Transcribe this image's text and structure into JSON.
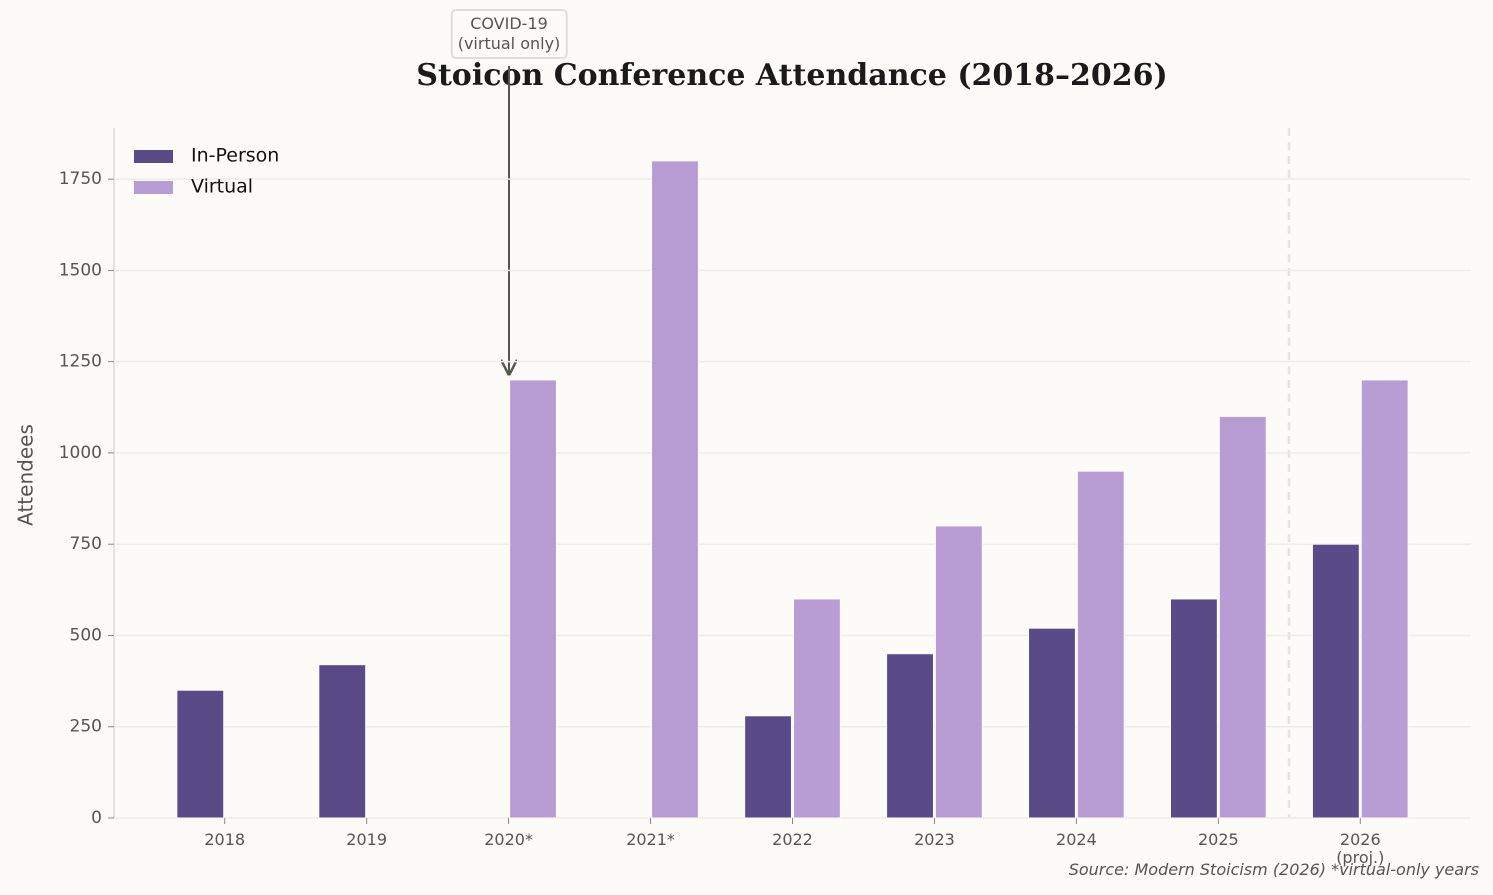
{
  "chart_data": {
    "type": "bar",
    "title": "Stoicon Conference Attendance (2018–2026)",
    "ylabel": "Attendees",
    "categories": [
      "2018",
      "2019",
      "2020*",
      "2021*",
      "2022",
      "2023",
      "2024",
      "2025",
      "2026\n(proj.)"
    ],
    "series": [
      {
        "name": "In-Person",
        "color": "#5a4a87",
        "values": [
          350,
          420,
          null,
          null,
          280,
          450,
          520,
          600,
          750
        ]
      },
      {
        "name": "Virtual",
        "color": "#b89dd4",
        "values": [
          null,
          null,
          1200,
          1800,
          600,
          800,
          950,
          1100,
          1200
        ]
      }
    ],
    "ylim": [
      0,
      1890
    ],
    "yticks": [
      0,
      250,
      500,
      750,
      1000,
      1250,
      1500,
      1750
    ],
    "grid": true,
    "legend": "upper left",
    "annotations": [
      "COVID-19\n(virtual only)"
    ],
    "source": "Source: Modern Stoicism (2026) *virtual-only years"
  }
}
